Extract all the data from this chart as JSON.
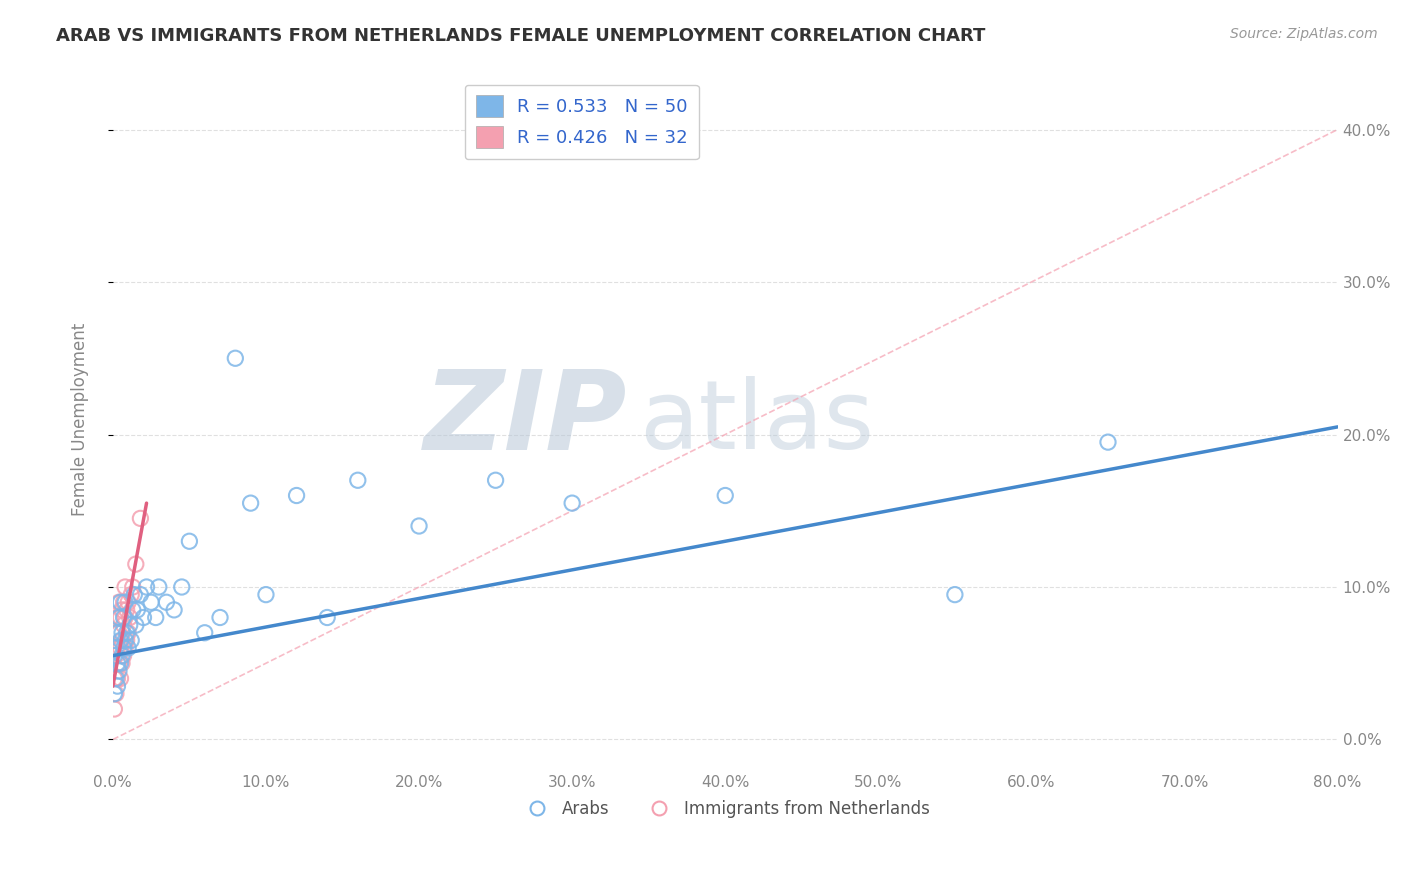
{
  "title": "ARAB VS IMMIGRANTS FROM NETHERLANDS FEMALE UNEMPLOYMENT CORRELATION CHART",
  "source": "Source: ZipAtlas.com",
  "ylabel": "Female Unemployment",
  "xlim": [
    0,
    0.8
  ],
  "ylim": [
    -0.02,
    0.44
  ],
  "xticks": [
    0.0,
    0.1,
    0.2,
    0.3,
    0.4,
    0.5,
    0.6,
    0.7,
    0.8
  ],
  "yticks_right": [
    0.0,
    0.1,
    0.2,
    0.3,
    0.4
  ],
  "ytick_labels_right": [
    "0.0%",
    "10.0%",
    "20.0%",
    "30.0%",
    "40.0%"
  ],
  "xtick_labels": [
    "0.0%",
    "10.0%",
    "20.0%",
    "30.0%",
    "40.0%",
    "50.0%",
    "60.0%",
    "70.0%",
    "80.0%"
  ],
  "series_arab": {
    "label": "Arabs",
    "color": "#7EB6E8",
    "R": 0.533,
    "N": 50,
    "x": [
      0.001,
      0.001,
      0.002,
      0.002,
      0.003,
      0.003,
      0.003,
      0.004,
      0.004,
      0.005,
      0.005,
      0.005,
      0.006,
      0.006,
      0.007,
      0.007,
      0.008,
      0.008,
      0.009,
      0.01,
      0.011,
      0.012,
      0.013,
      0.014,
      0.015,
      0.016,
      0.018,
      0.02,
      0.022,
      0.025,
      0.028,
      0.03,
      0.035,
      0.04,
      0.045,
      0.05,
      0.06,
      0.07,
      0.08,
      0.09,
      0.1,
      0.12,
      0.14,
      0.16,
      0.2,
      0.25,
      0.3,
      0.4,
      0.55,
      0.65
    ],
    "y": [
      0.03,
      0.055,
      0.04,
      0.06,
      0.035,
      0.05,
      0.07,
      0.045,
      0.08,
      0.05,
      0.065,
      0.09,
      0.055,
      0.07,
      0.06,
      0.08,
      0.065,
      0.09,
      0.07,
      0.06,
      0.075,
      0.065,
      0.085,
      0.095,
      0.075,
      0.085,
      0.095,
      0.08,
      0.1,
      0.09,
      0.08,
      0.1,
      0.09,
      0.085,
      0.1,
      0.13,
      0.07,
      0.08,
      0.25,
      0.155,
      0.095,
      0.16,
      0.08,
      0.17,
      0.14,
      0.17,
      0.155,
      0.16,
      0.095,
      0.195
    ],
    "trend_x": [
      0.0,
      0.8
    ],
    "trend_y": [
      0.055,
      0.205
    ]
  },
  "series_netherlands": {
    "label": "Immigrants from Netherlands",
    "color": "#F4A0B0",
    "R": 0.426,
    "N": 32,
    "x": [
      0.001,
      0.001,
      0.002,
      0.002,
      0.002,
      0.003,
      0.003,
      0.003,
      0.004,
      0.004,
      0.004,
      0.005,
      0.005,
      0.005,
      0.006,
      0.006,
      0.006,
      0.007,
      0.007,
      0.007,
      0.008,
      0.008,
      0.008,
      0.009,
      0.009,
      0.01,
      0.01,
      0.011,
      0.012,
      0.013,
      0.015,
      0.018
    ],
    "y": [
      0.02,
      0.04,
      0.03,
      0.055,
      0.07,
      0.04,
      0.06,
      0.08,
      0.05,
      0.07,
      0.09,
      0.04,
      0.06,
      0.08,
      0.05,
      0.065,
      0.085,
      0.055,
      0.075,
      0.09,
      0.06,
      0.08,
      0.1,
      0.065,
      0.085,
      0.07,
      0.09,
      0.08,
      0.095,
      0.1,
      0.115,
      0.145
    ],
    "trend_x": [
      0.0,
      0.022
    ],
    "trend_y": [
      0.035,
      0.155
    ]
  },
  "diag_line": {
    "x": [
      0.0,
      0.8
    ],
    "y": [
      0.0,
      0.4
    ],
    "color": "#F4A0B0",
    "linestyle": "--",
    "linewidth": 1.2,
    "alpha": 0.7
  },
  "watermark_zip": "ZIP",
  "watermark_atlas": "atlas",
  "watermark_color_zip": "#B8C8D8",
  "watermark_color_atlas": "#B8C8D8",
  "background_color": "#FFFFFF",
  "grid_color": "#CCCCCC",
  "title_color": "#333333",
  "axis_label_color": "#888888",
  "tick_color": "#888888",
  "legend_text_color": "#3366CC",
  "legend_N_color": "#FF6600"
}
